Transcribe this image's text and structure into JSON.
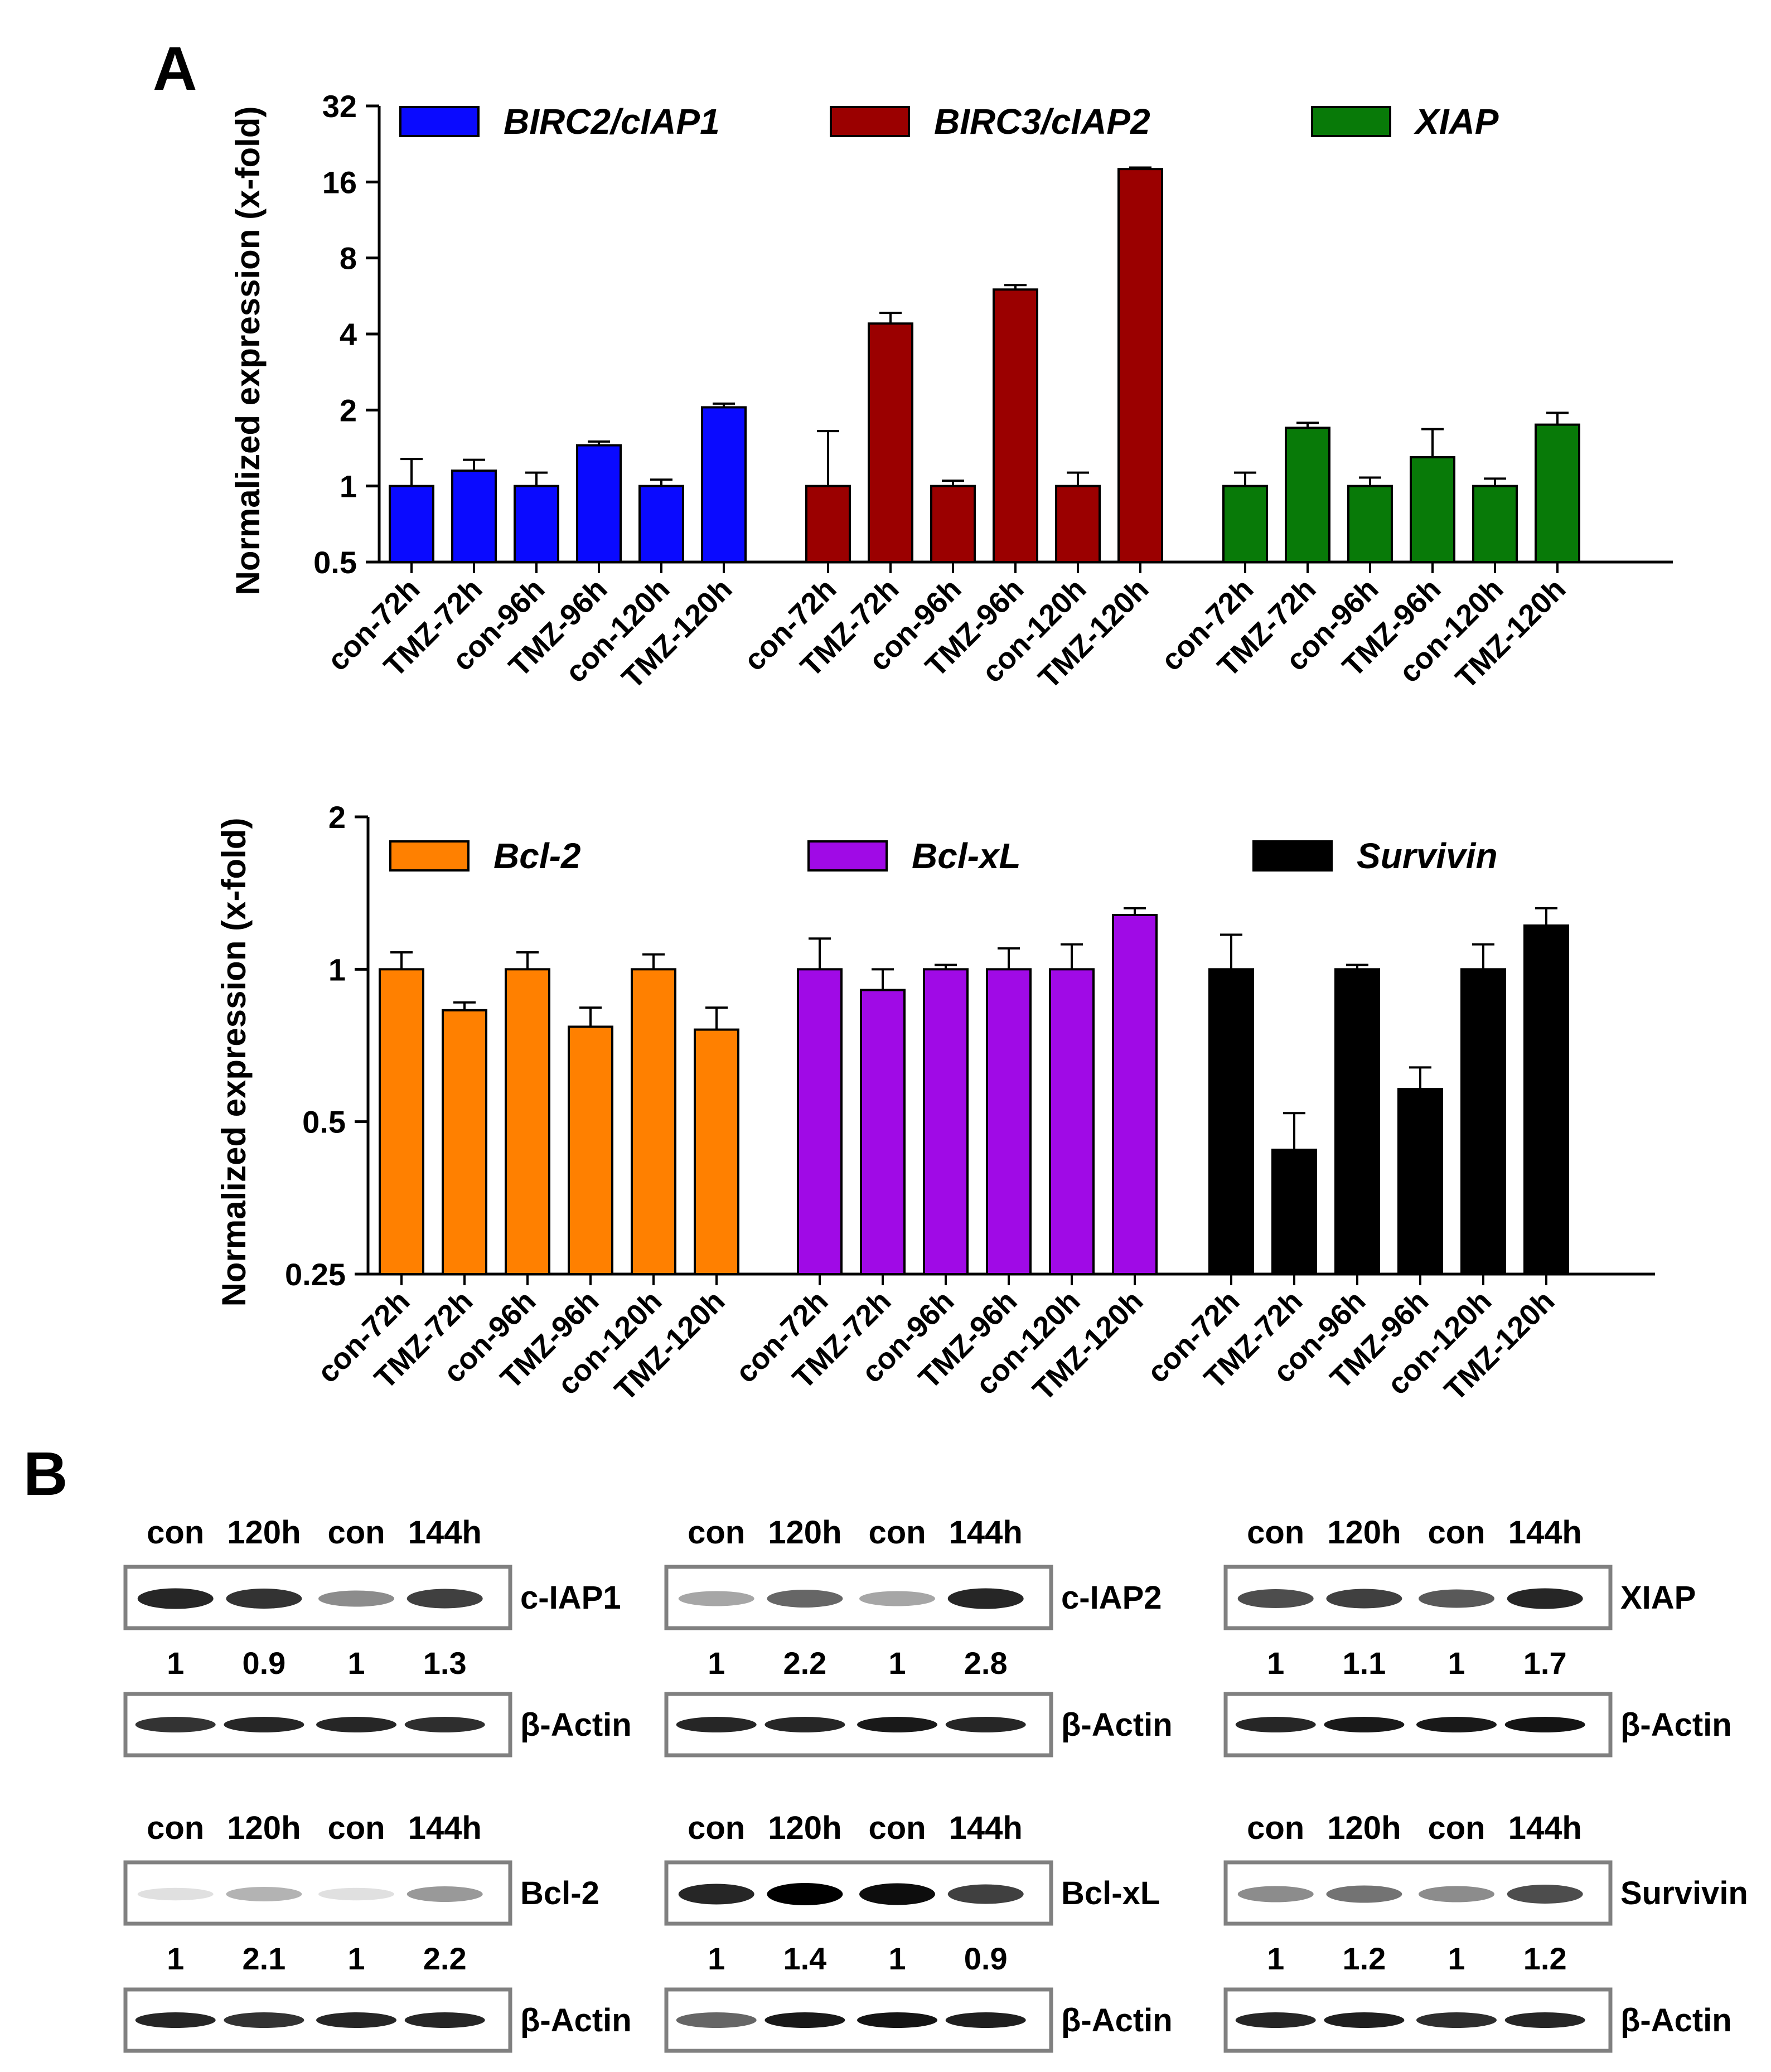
{
  "panel_labels": {
    "a": "A",
    "b": "B"
  },
  "chart_data": [
    {
      "type": "bar",
      "ylabel": "Normalized expression (x-fold)",
      "yscale": "log2",
      "ylim": [
        0.5,
        32
      ],
      "yticks": [
        "0.5",
        "1",
        "2",
        "4",
        "8",
        "16",
        "32"
      ],
      "legend_position": "top",
      "series": [
        {
          "name": "BIRC2/cIAP1",
          "color": "#0a0aff",
          "categories": [
            "con-72h",
            "TMZ-72h",
            "con-96h",
            "TMZ-96h",
            "con-120h",
            "TMZ-120h"
          ],
          "values": [
            1.0,
            1.15,
            1.0,
            1.45,
            1.0,
            2.05
          ],
          "errors": [
            0.28,
            0.12,
            0.13,
            0.05,
            0.06,
            0.07
          ]
        },
        {
          "name": "BIRC3/cIAP2",
          "color": "#9b0000",
          "categories": [
            "con-72h",
            "TMZ-72h",
            "con-96h",
            "TMZ-96h",
            "con-120h",
            "TMZ-120h"
          ],
          "values": [
            1.0,
            4.4,
            1.0,
            6.0,
            1.0,
            18.0
          ],
          "errors": [
            0.65,
            0.45,
            0.05,
            0.25,
            0.13,
            0.25
          ]
        },
        {
          "name": "XIAP",
          "color": "#087a08",
          "categories": [
            "con-72h",
            "TMZ-72h",
            "con-96h",
            "TMZ-96h",
            "con-120h",
            "TMZ-120h"
          ],
          "values": [
            1.0,
            1.7,
            1.0,
            1.3,
            1.0,
            1.75
          ],
          "errors": [
            0.13,
            0.08,
            0.08,
            0.38,
            0.07,
            0.2
          ]
        }
      ]
    },
    {
      "type": "bar",
      "ylabel": "Normalized expression (x-fold)",
      "yscale": "log2",
      "ylim": [
        0.25,
        2
      ],
      "yticks": [
        "0.25",
        "0.5",
        "1",
        "2"
      ],
      "legend_position": "top",
      "series": [
        {
          "name": "Bcl-2",
          "color": "#ff8000",
          "categories": [
            "con-72h",
            "TMZ-72h",
            "con-96h",
            "TMZ-96h",
            "con-120h",
            "TMZ-120h"
          ],
          "values": [
            1.0,
            0.83,
            1.0,
            0.77,
            1.0,
            0.76
          ],
          "errors": [
            0.08,
            0.03,
            0.08,
            0.07,
            0.07,
            0.08
          ]
        },
        {
          "name": "Bcl-xL",
          "color": "#a00ae6",
          "categories": [
            "con-72h",
            "TMZ-72h",
            "con-96h",
            "TMZ-96h",
            "con-120h",
            "TMZ-120h"
          ],
          "values": [
            1.0,
            0.91,
            1.0,
            1.0,
            1.0,
            1.28
          ],
          "errors": [
            0.15,
            0.09,
            0.02,
            0.1,
            0.12,
            0.04
          ]
        },
        {
          "name": "Survivin",
          "color": "#000000",
          "categories": [
            "con-72h",
            "TMZ-72h",
            "con-96h",
            "TMZ-96h",
            "con-120h",
            "TMZ-120h"
          ],
          "values": [
            1.0,
            0.44,
            1.0,
            0.58,
            1.0,
            1.22
          ],
          "errors": [
            0.17,
            0.08,
            0.02,
            0.06,
            0.12,
            0.1
          ]
        }
      ]
    }
  ],
  "blots": [
    {
      "lanes": [
        "con",
        "120h",
        "con",
        "144h"
      ],
      "protein": "c-IAP1",
      "quant": [
        "1",
        "0.9",
        "1",
        "1.3"
      ],
      "loading": "β-Actin",
      "band_intensity": [
        0.85,
        0.8,
        0.45,
        0.75
      ],
      "band_intensity_loading": [
        0.8,
        0.85,
        0.85,
        0.82
      ]
    },
    {
      "lanes": [
        "con",
        "120h",
        "con",
        "144h"
      ],
      "protein": "c-IAP2",
      "quant": [
        "1",
        "2.2",
        "1",
        "2.8"
      ],
      "loading": "β-Actin",
      "band_intensity": [
        0.35,
        0.6,
        0.35,
        0.85
      ],
      "band_intensity_loading": [
        0.85,
        0.85,
        0.9,
        0.85
      ]
    },
    {
      "lanes": [
        "con",
        "120h",
        "con",
        "144h"
      ],
      "protein": "XIAP",
      "quant": [
        "1",
        "1.1",
        "1",
        "1.7"
      ],
      "loading": "β-Actin",
      "band_intensity": [
        0.7,
        0.75,
        0.65,
        0.85
      ],
      "band_intensity_loading": [
        0.85,
        0.9,
        0.9,
        0.92
      ]
    },
    {
      "lanes": [
        "con",
        "120h",
        "con",
        "144h"
      ],
      "protein": "Bcl-2",
      "quant": [
        "1",
        "2.1",
        "1",
        "2.2"
      ],
      "loading": "β-Actin",
      "band_intensity": [
        0.12,
        0.3,
        0.12,
        0.4
      ],
      "band_intensity_loading": [
        0.85,
        0.8,
        0.85,
        0.85
      ]
    },
    {
      "lanes": [
        "con",
        "120h",
        "con",
        "144h"
      ],
      "protein": "Bcl-xL",
      "quant": [
        "1",
        "1.4",
        "1",
        "0.9"
      ],
      "loading": "β-Actin",
      "band_intensity": [
        0.85,
        1.0,
        0.95,
        0.75
      ],
      "band_intensity_loading": [
        0.6,
        0.9,
        0.92,
        0.88
      ]
    },
    {
      "lanes": [
        "con",
        "120h",
        "con",
        "144h"
      ],
      "protein": "Survivin",
      "quant": [
        "1",
        "1.2",
        "1",
        "1.2"
      ],
      "loading": "β-Actin",
      "band_intensity": [
        0.45,
        0.55,
        0.45,
        0.7
      ],
      "band_intensity_loading": [
        0.85,
        0.88,
        0.82,
        0.85
      ]
    }
  ]
}
